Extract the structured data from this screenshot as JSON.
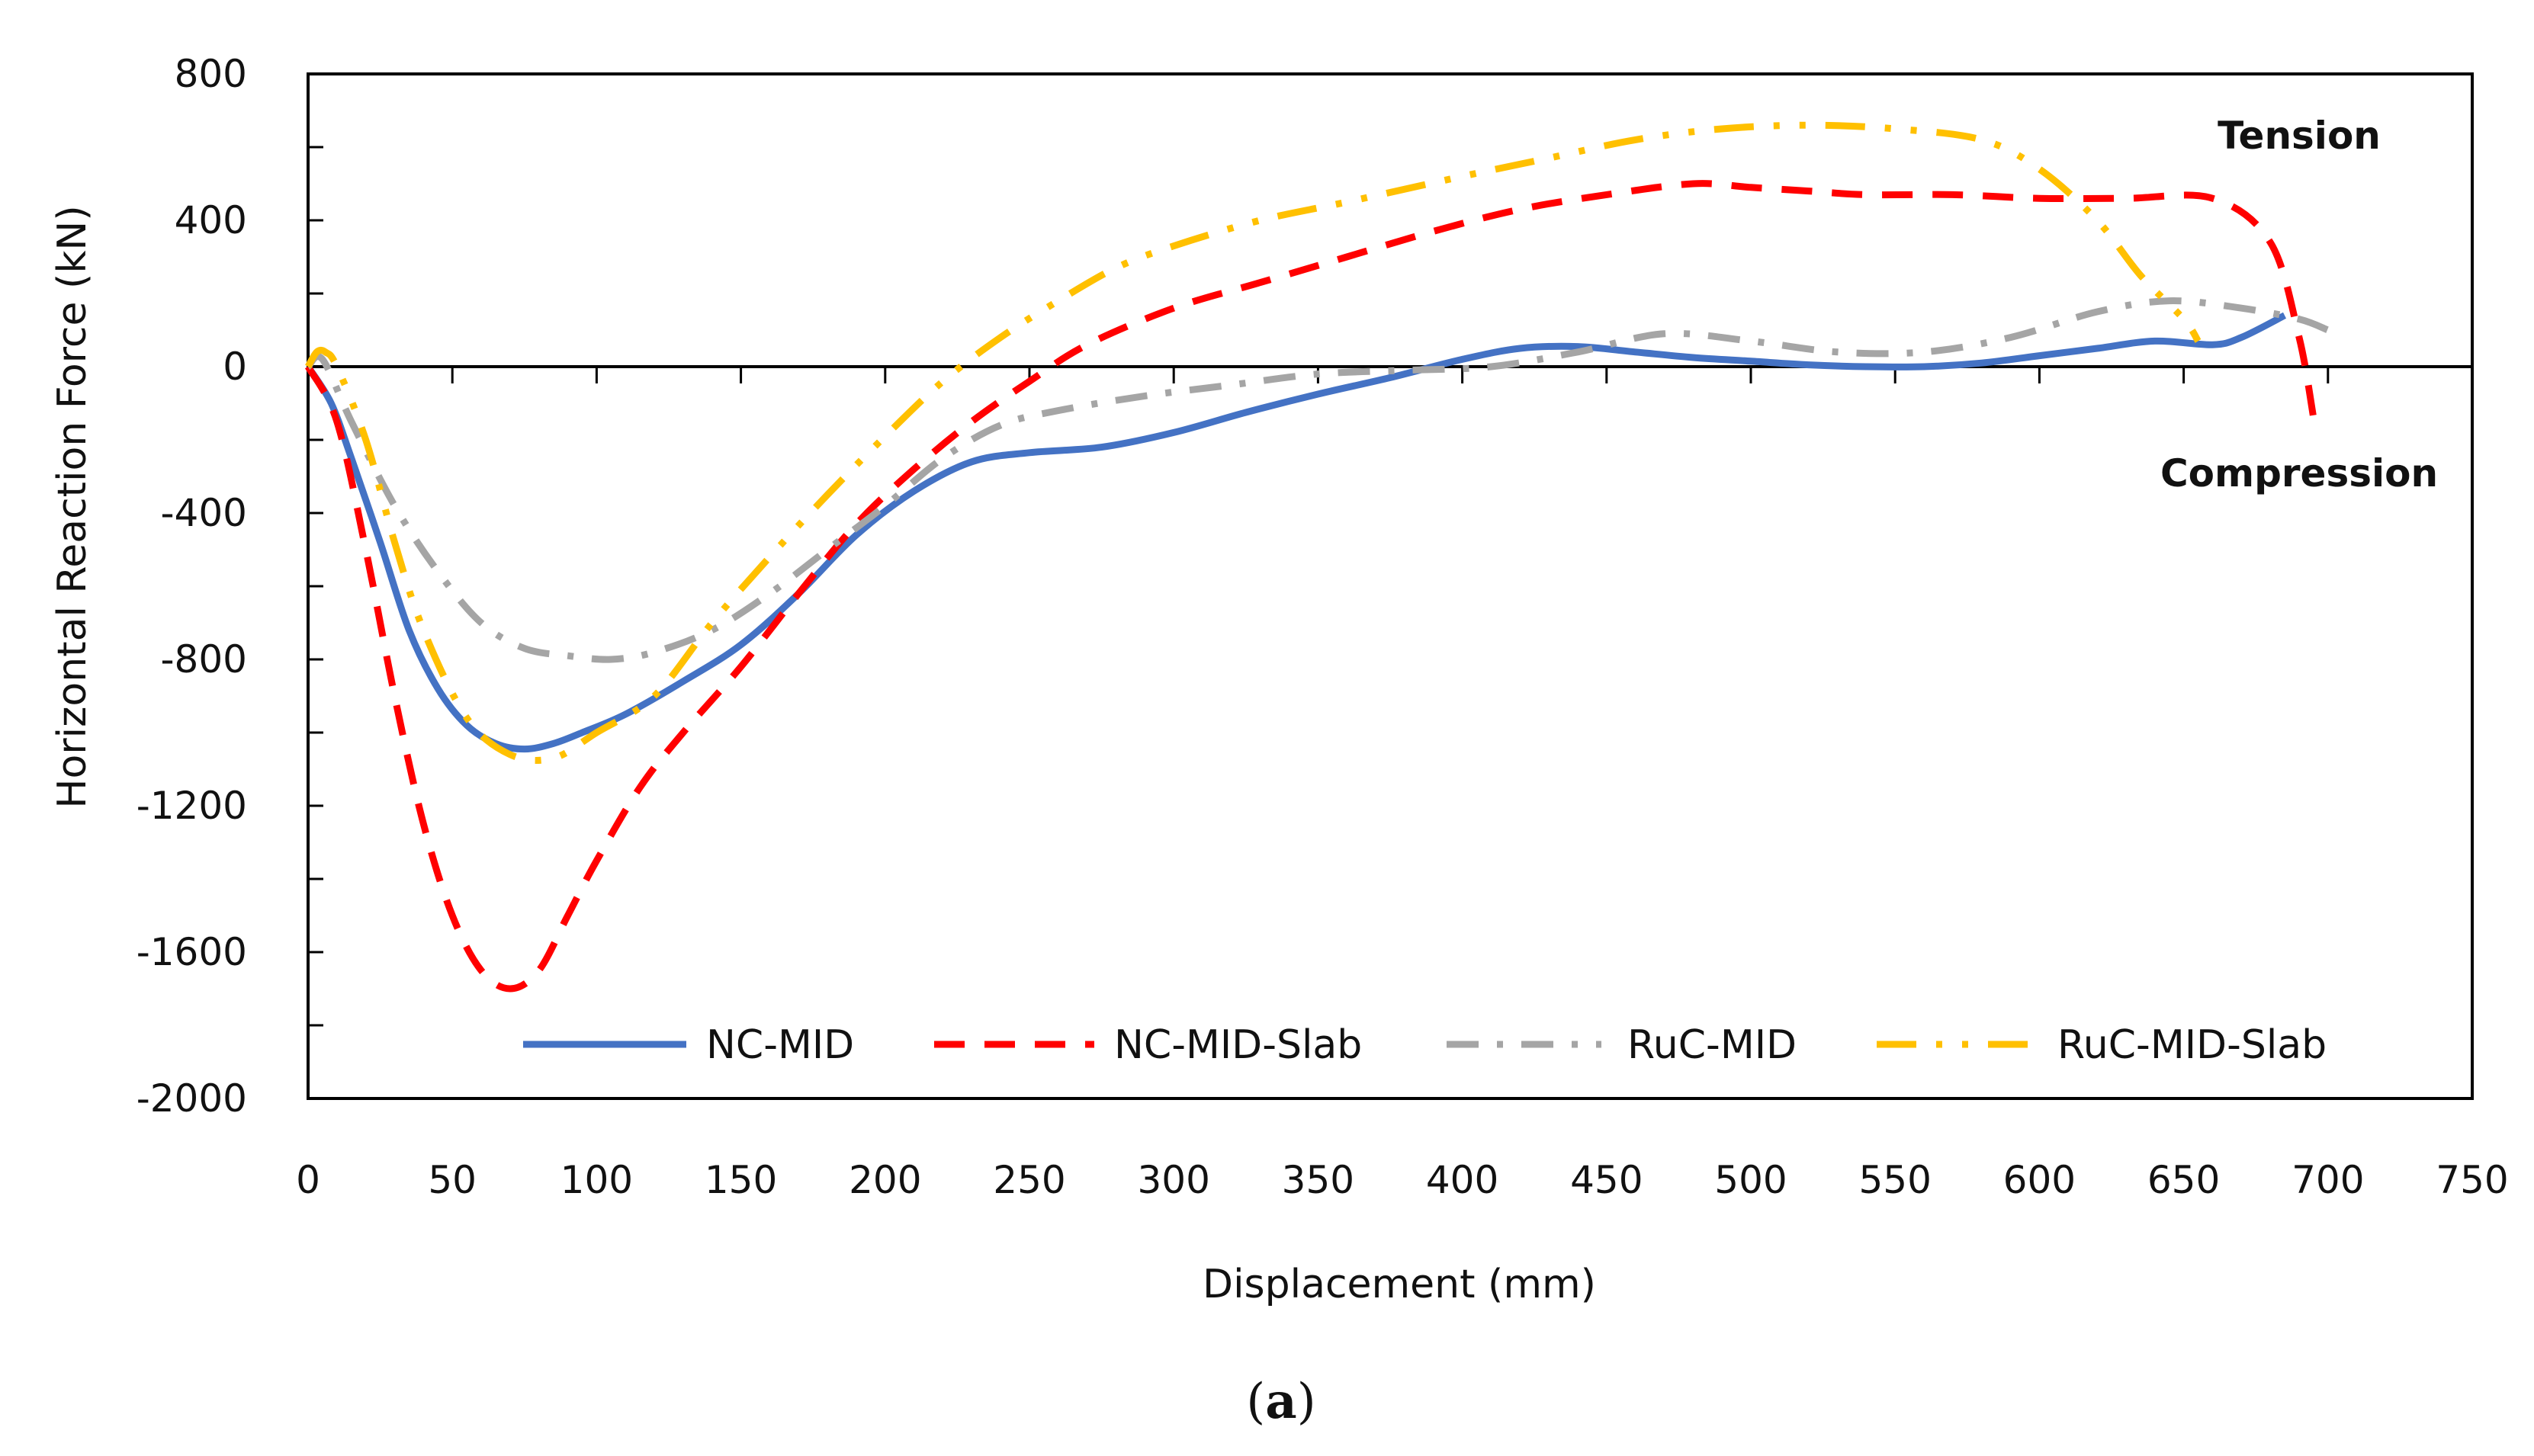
{
  "chart_data": {
    "type": "line",
    "xlabel": "Displacement (mm)",
    "ylabel": "Horizontal Reaction Force  (kN)",
    "xlim": [
      0,
      750
    ],
    "ylim": [
      -2000,
      800
    ],
    "x_ticks": [
      0,
      50,
      100,
      150,
      200,
      250,
      300,
      350,
      400,
      450,
      500,
      550,
      600,
      650,
      700,
      750
    ],
    "y_ticks": [
      800,
      400,
      0,
      -400,
      -800,
      -1200,
      -1600,
      -2000
    ],
    "x_tick_labels": [
      "0",
      "50",
      "100",
      "150",
      "200",
      "250",
      "300",
      "350",
      "400",
      "450",
      "500",
      "550",
      "600",
      "650",
      "700",
      "750"
    ],
    "y_tick_labels": [
      "800",
      "400",
      "0",
      "-400",
      "-800",
      "-1200",
      "-1600",
      "-2000"
    ],
    "grid": false,
    "legend_position": "bottom-inside",
    "annotations": [
      {
        "text": "Tension",
        "at": [
          715,
          620
        ]
      },
      {
        "text": "Compression",
        "at": [
          715,
          -300
        ]
      }
    ],
    "caption_text": "a",
    "series": [
      {
        "name": "NC-MID",
        "color": "#4472C4",
        "style": "solid",
        "x": [
          0,
          8,
          15,
          25,
          35,
          45,
          55,
          65,
          75,
          85,
          95,
          110,
          130,
          150,
          170,
          190,
          210,
          230,
          250,
          275,
          300,
          325,
          350,
          375,
          400,
          420,
          440,
          460,
          480,
          500,
          520,
          540,
          560,
          580,
          600,
          620,
          640,
          660,
          670,
          685
        ],
        "y": [
          0,
          -100,
          -250,
          -480,
          -720,
          -880,
          -980,
          -1030,
          -1045,
          -1030,
          -1000,
          -950,
          -860,
          -760,
          -620,
          -460,
          -340,
          -260,
          -235,
          -220,
          -180,
          -125,
          -75,
          -30,
          20,
          50,
          55,
          40,
          25,
          15,
          5,
          0,
          0,
          10,
          30,
          50,
          70,
          60,
          80,
          140
        ]
      },
      {
        "name": "NC-MID-Slab",
        "color": "#FF0000",
        "style": "dashed",
        "x": [
          0,
          10,
          20,
          30,
          40,
          50,
          60,
          70,
          80,
          90,
          100,
          115,
          130,
          150,
          170,
          190,
          210,
          230,
          250,
          270,
          300,
          330,
          360,
          390,
          420,
          450,
          480,
          500,
          520,
          540,
          570,
          600,
          630,
          660,
          680,
          690,
          695
        ],
        "y": [
          0,
          -150,
          -500,
          -900,
          -1250,
          -1500,
          -1650,
          -1700,
          -1650,
          -1500,
          -1350,
          -1150,
          -1000,
          -820,
          -620,
          -430,
          -280,
          -150,
          -40,
          60,
          160,
          230,
          300,
          370,
          430,
          470,
          500,
          490,
          480,
          470,
          470,
          460,
          460,
          460,
          340,
          80,
          -140
        ]
      },
      {
        "name": "RuC-MID",
        "color": "#A5A5A5",
        "style": "dashdot",
        "x": [
          0,
          5,
          15,
          30,
          45,
          60,
          75,
          90,
          105,
          120,
          140,
          160,
          180,
          200,
          220,
          240,
          260,
          290,
          320,
          350,
          380,
          410,
          440,
          470,
          500,
          530,
          560,
          590,
          620,
          645,
          670,
          690,
          700
        ],
        "y": [
          0,
          20,
          -150,
          -380,
          -560,
          -700,
          -770,
          -790,
          -800,
          -780,
          -720,
          -620,
          -500,
          -380,
          -250,
          -160,
          -120,
          -80,
          -50,
          -20,
          -10,
          0,
          40,
          90,
          70,
          40,
          40,
          80,
          150,
          180,
          160,
          130,
          100
        ]
      },
      {
        "name": "RuC-MID-Slab",
        "color": "#FFC000",
        "style": "dashdotdot",
        "x": [
          0,
          3,
          6,
          10,
          20,
          30,
          40,
          55,
          70,
          85,
          100,
          120,
          140,
          160,
          180,
          200,
          220,
          240,
          260,
          280,
          300,
          330,
          360,
          400,
          430,
          460,
          490,
          520,
          550,
          580,
          600,
          620,
          635,
          650,
          655
        ],
        "y": [
          0,
          40,
          40,
          0,
          -200,
          -480,
          -720,
          -960,
          -1060,
          -1070,
          -1000,
          -900,
          -700,
          -520,
          -350,
          -190,
          -40,
          80,
          180,
          270,
          330,
          400,
          450,
          520,
          570,
          620,
          650,
          660,
          650,
          620,
          540,
          400,
          250,
          130,
          70
        ]
      }
    ]
  }
}
